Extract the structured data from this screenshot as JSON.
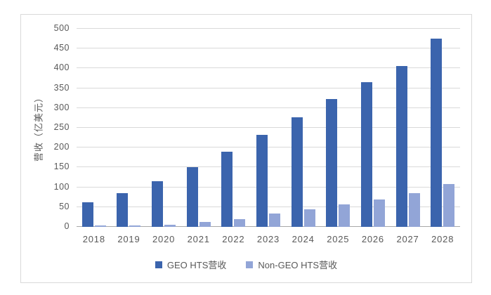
{
  "chart_data": {
    "type": "bar",
    "title": "",
    "xlabel": "",
    "ylabel": "营收（亿美元）",
    "categories": [
      "2018",
      "2019",
      "2020",
      "2021",
      "2022",
      "2023",
      "2024",
      "2025",
      "2026",
      "2027",
      "2028"
    ],
    "series": [
      {
        "name": "GEO HTS营收",
        "color": "#3B64AD",
        "values": [
          62,
          86,
          116,
          150,
          189,
          232,
          277,
          322,
          366,
          406,
          475
        ]
      },
      {
        "name": "Non-GEO HTS营收",
        "color": "#92A5D7",
        "values": [
          3,
          4,
          6,
          13,
          20,
          33,
          44,
          56,
          70,
          85,
          108
        ]
      }
    ],
    "ylim": [
      0,
      500
    ],
    "yticks": [
      0,
      50,
      100,
      150,
      200,
      250,
      300,
      350,
      400,
      450,
      500
    ],
    "grid": true,
    "legend_position": "bottom"
  },
  "style": {
    "bar_color_geo": "#3B64AD",
    "bar_color_non_geo": "#92A5D7",
    "gridline_color": "#D9D9D9",
    "axis_line_color": "#A8A8A8",
    "text_color": "#595959",
    "frame_border_color": "#D9D9D9",
    "background": "#FFFFFF"
  }
}
